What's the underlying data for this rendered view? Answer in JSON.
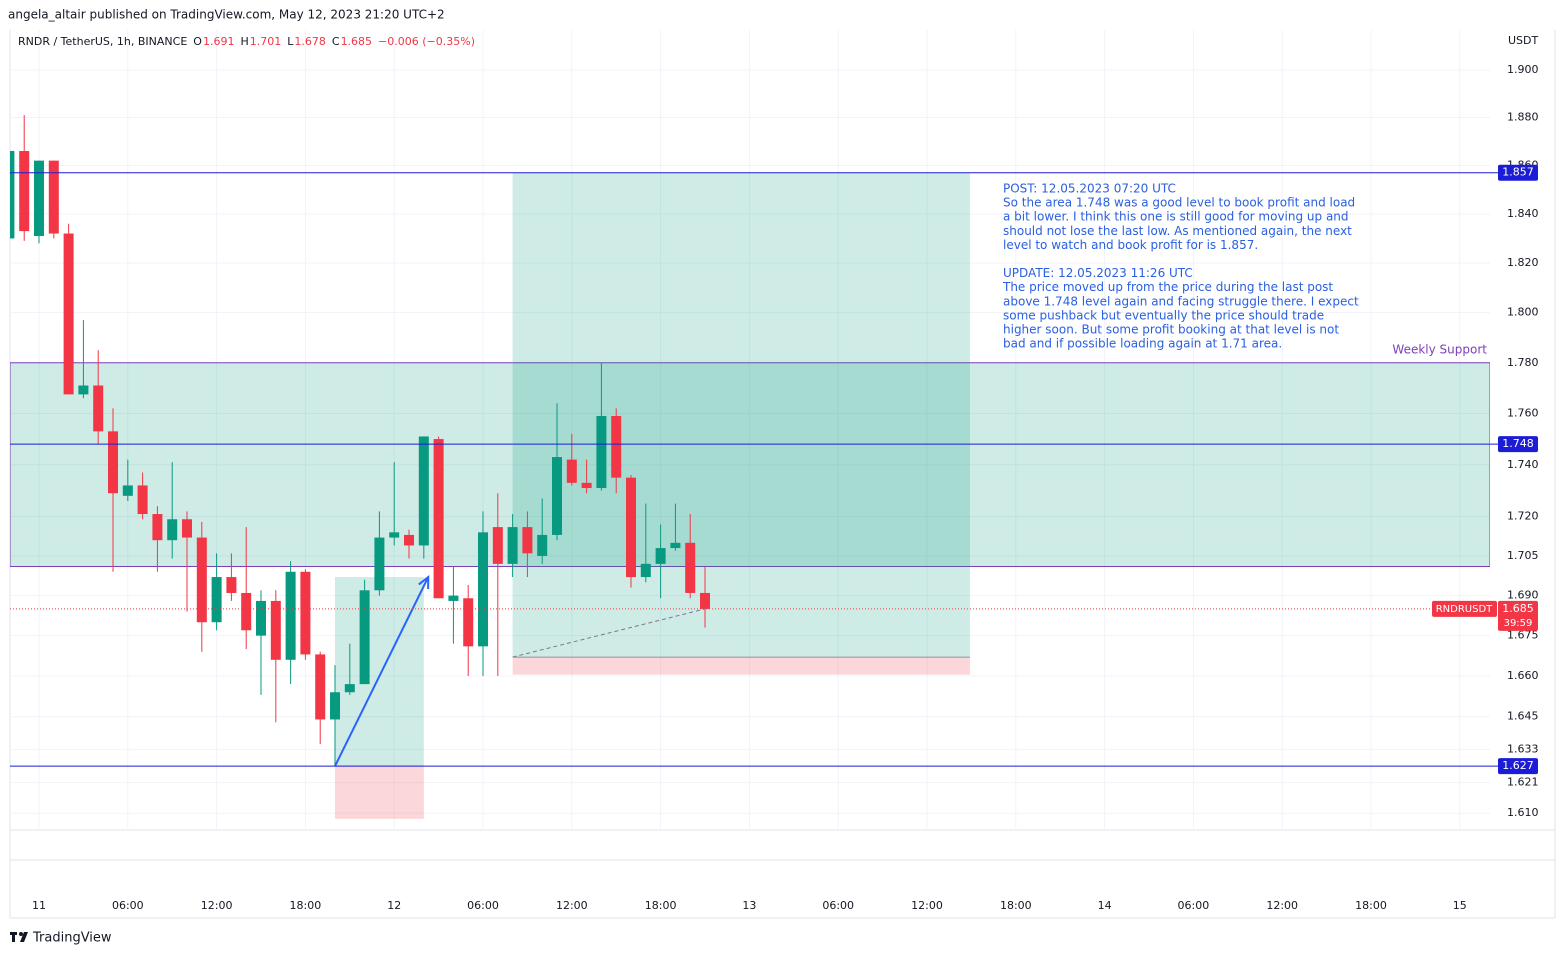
{
  "header": {
    "publisher": "angela_altair published on TradingView.com, May 12, 2023 21:20 UTC+2",
    "brand": "TradingView"
  },
  "chart_data": {
    "type": "candlestick",
    "legend": {
      "symbol": "RNDR / TetherUS, 1h, BINANCE",
      "ohlc": [
        {
          "key": "O",
          "value": 1.691
        },
        {
          "key": "H",
          "value": 1.701
        },
        {
          "key": "L",
          "value": 1.678
        },
        {
          "key": "C",
          "value": 1.685
        }
      ],
      "change": "−0.006 (−0.35%)"
    },
    "y_unit": "USDT",
    "log_scale": true,
    "grid": true,
    "up_color": "#089981",
    "down_color": "#f23645",
    "xlim": [
      -1.96,
      98.04
    ],
    "xticks": [
      {
        "value": 0,
        "label": "11"
      },
      {
        "value": 6,
        "label": "06:00"
      },
      {
        "value": 12,
        "label": "12:00"
      },
      {
        "value": 18,
        "label": "18:00"
      },
      {
        "value": 24,
        "label": "12"
      },
      {
        "value": 30,
        "label": "06:00"
      },
      {
        "value": 36,
        "label": "12:00"
      },
      {
        "value": 42,
        "label": "18:00"
      },
      {
        "value": 48,
        "label": "13"
      },
      {
        "value": 54,
        "label": "06:00"
      },
      {
        "value": 60,
        "label": "12:00"
      },
      {
        "value": 66,
        "label": "18:00"
      },
      {
        "value": 72,
        "label": "14"
      },
      {
        "value": 78,
        "label": "06:00"
      },
      {
        "value": 84,
        "label": "12:00"
      },
      {
        "value": 90,
        "label": "18:00"
      },
      {
        "value": 96,
        "label": "15"
      }
    ],
    "ylim": [
      1.604,
      1.917
    ],
    "yticks": [
      {
        "value": 1.9,
        "label": "1.900"
      },
      {
        "value": 1.88,
        "label": "1.880"
      },
      {
        "value": 1.86,
        "label": "1.860"
      },
      {
        "value": 1.84,
        "label": "1.840"
      },
      {
        "value": 1.82,
        "label": "1.820"
      },
      {
        "value": 1.8,
        "label": "1.800"
      },
      {
        "value": 1.78,
        "label": "1.780"
      },
      {
        "value": 1.76,
        "label": "1.760"
      },
      {
        "value": 1.74,
        "label": "1.740"
      },
      {
        "value": 1.72,
        "label": "1.720"
      },
      1.705,
      {
        "value": 1.69,
        "label": "1.690"
      },
      1.675,
      {
        "value": 1.66,
        "label": "1.660"
      },
      1.645,
      1.633,
      1.621,
      {
        "value": 1.61,
        "label": "1.610"
      }
    ],
    "x": [
      -2,
      -1,
      0,
      1,
      2,
      3,
      4,
      5,
      6,
      7,
      8,
      9,
      10,
      11,
      12,
      13,
      14,
      15,
      16,
      17,
      18,
      19,
      20,
      21,
      22,
      23,
      24,
      25,
      26,
      27,
      28,
      29,
      30,
      31,
      32,
      33,
      34,
      35,
      36,
      37,
      38,
      39,
      40,
      41,
      42,
      43,
      44,
      45
    ],
    "open": [
      1.83,
      1.866,
      1.831,
      1.862,
      1.832,
      1.7675,
      1.771,
      1.753,
      1.728,
      1.732,
      1.721,
      1.711,
      1.719,
      1.712,
      1.68,
      1.697,
      1.691,
      1.675,
      1.688,
      1.666,
      1.699,
      1.668,
      1.644,
      1.654,
      1.657,
      1.692,
      1.712,
      1.713,
      1.709,
      1.75,
      1.688,
      1.689,
      1.671,
      1.716,
      1.702,
      1.716,
      1.705,
      1.713,
      1.742,
      1.733,
      1.731,
      1.759,
      1.735,
      1.697,
      1.702,
      1.708,
      1.71,
      1.691
    ],
    "high": [
      1.866,
      1.881,
      1.862,
      1.862,
      1.836,
      1.797,
      1.785,
      1.762,
      1.742,
      1.737,
      1.724,
      1.741,
      1.722,
      1.718,
      1.706,
      1.706,
      1.716,
      1.692,
      1.692,
      1.703,
      1.7,
      1.669,
      1.664,
      1.672,
      1.696,
      1.722,
      1.741,
      1.715,
      1.751,
      1.751,
      1.701,
      1.694,
      1.722,
      1.729,
      1.721,
      1.722,
      1.727,
      1.764,
      1.752,
      1.742,
      1.78,
      1.762,
      1.736,
      1.725,
      1.717,
      1.725,
      1.721,
      1.701
    ],
    "low": [
      1.83,
      1.829,
      1.828,
      1.83,
      1.7675,
      1.766,
      1.748,
      1.699,
      1.726,
      1.719,
      1.699,
      1.704,
      1.684,
      1.669,
      1.677,
      1.688,
      1.67,
      1.653,
      1.643,
      1.657,
      1.666,
      1.635,
      1.627,
      1.653,
      1.657,
      1.69,
      1.709,
      1.704,
      1.704,
      1.689,
      1.672,
      1.66,
      1.66,
      1.66,
      1.697,
      1.697,
      1.702,
      1.711,
      1.732,
      1.729,
      1.73,
      1.729,
      1.693,
      1.695,
      1.689,
      1.707,
      1.689,
      1.678
    ],
    "close": [
      1.866,
      1.833,
      1.862,
      1.832,
      1.7675,
      1.771,
      1.753,
      1.729,
      1.732,
      1.721,
      1.711,
      1.719,
      1.712,
      1.68,
      1.697,
      1.691,
      1.677,
      1.688,
      1.666,
      1.699,
      1.668,
      1.644,
      1.654,
      1.657,
      1.692,
      1.712,
      1.714,
      1.709,
      1.751,
      1.689,
      1.69,
      1.671,
      1.714,
      1.702,
      1.716,
      1.706,
      1.713,
      1.743,
      1.733,
      1.731,
      1.759,
      1.735,
      1.697,
      1.702,
      1.708,
      1.71,
      1.691,
      1.685
    ],
    "levels": {
      "color": "#1c1cd6",
      "values": [
        1.857,
        1.748,
        1.627
      ]
    },
    "zone": {
      "label": "Weekly Support",
      "color": "#7b3fb8",
      "low": 1.701,
      "high": 1.78
    },
    "positions": [
      {
        "start": 20,
        "end": 26,
        "entry": 1.627,
        "target": 1.697,
        "stop": 1.608
      },
      {
        "start": 32,
        "end": 62.9,
        "entry": 1.667,
        "target": 1.857,
        "stop": 1.6605
      }
    ],
    "arrow": {
      "x": [
        20,
        26.3
      ],
      "y": [
        1.627,
        1.697
      ]
    },
    "trend": {
      "x": [
        32,
        45
      ],
      "y": [
        1.667,
        1.685
      ]
    },
    "last_price": {
      "symbol": "RNDRUSDT",
      "value": 1.685,
      "countdown": "39:59"
    },
    "note": {
      "color": "#2a5fe0",
      "lines": [
        "POST: 12.05.2023 07:20 UTC",
        "So the area 1.748 was a good level to book profit and load",
        "a bit lower. I think this one is still good for moving up and",
        "should not lose the last low. As mentioned again, the next",
        "level to watch and book profit for is 1.857.",
        null,
        "UPDATE: 12.05.2023 11:26 UTC",
        "The price moved up from the price during the last post",
        "above 1.748 level again and facing struggle there. I expect",
        "some pushback but eventually the price should trade",
        "higher soon. But some profit booking at that level is not",
        "bad and if possible loading again at 1.71 area."
      ]
    }
  }
}
